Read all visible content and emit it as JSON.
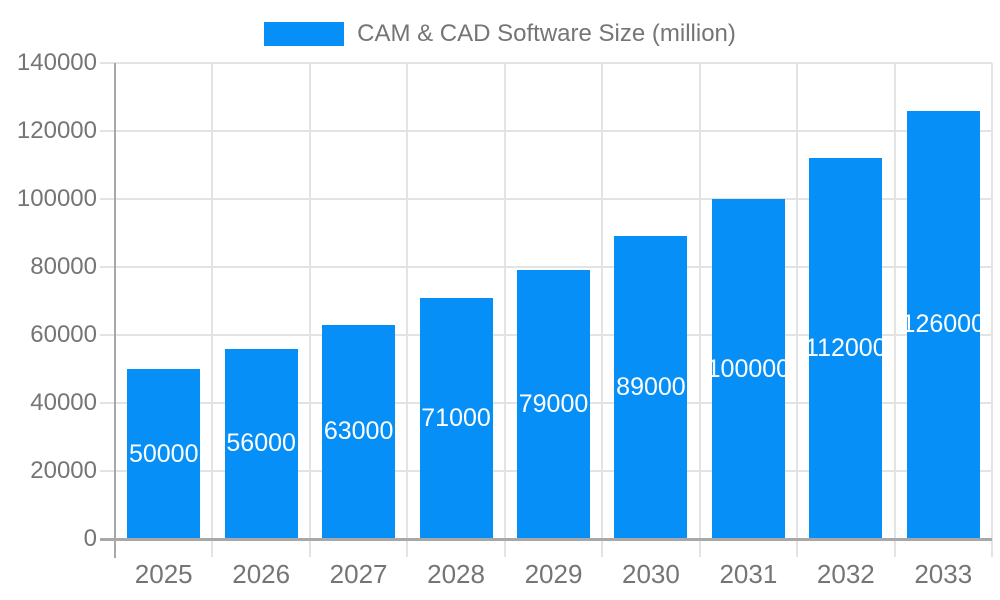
{
  "legend": {
    "position": "top"
  },
  "chart_data": {
    "type": "bar",
    "title": "",
    "series_name": "CAM & CAD Software Size (million)",
    "categories": [
      "2025",
      "2026",
      "2027",
      "2028",
      "2029",
      "2030",
      "2031",
      "2032",
      "2033"
    ],
    "values": [
      50000,
      56000,
      63000,
      71000,
      79000,
      89000,
      100000,
      112000,
      126000
    ],
    "xlabel": "",
    "ylabel": "",
    "ylim": [
      0,
      140000
    ],
    "yticks": [
      0,
      20000,
      40000,
      60000,
      80000,
      100000,
      120000,
      140000
    ],
    "grid": true,
    "legend_position": "top",
    "value_labels_position": "inside-center"
  },
  "colors": {
    "bar": "#0690F7",
    "grid": "#e3e3e3",
    "axis": "#a8a8a8",
    "tick_text": "#757575",
    "value_label_text": "#ffffff",
    "background": "#ffffff"
  }
}
